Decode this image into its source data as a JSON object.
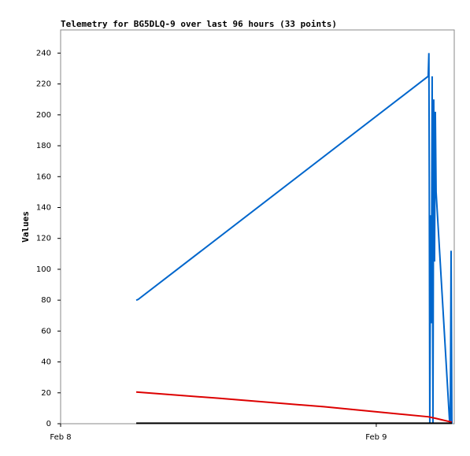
{
  "chart_data": {
    "type": "line",
    "title": "Telemetry for BG5DLQ-9 over last 96 hours (33 points)",
    "y_label": "Values",
    "xlim": [
      0,
      29.93
    ],
    "xticks": [
      {
        "value": 0,
        "label": "Feb 8"
      },
      {
        "value": 24,
        "label": "Feb 9"
      }
    ],
    "ylim": [
      0,
      255
    ],
    "yticks": [
      0,
      20,
      40,
      60,
      80,
      100,
      120,
      140,
      160,
      180,
      200,
      220,
      240
    ],
    "series": [
      {
        "color": "#0066cc",
        "x": [
          5.75,
          5.9,
          27.95,
          28.0,
          28.03,
          28.07,
          28.13,
          28.19,
          28.25,
          28.31,
          28.37,
          28.43,
          28.49,
          28.55,
          29.57,
          29.63,
          29.69,
          29.75
        ],
        "values": [
          80,
          80.5,
          225,
          240,
          160,
          0,
          135,
          65,
          225,
          0,
          210,
          105,
          202,
          150,
          2,
          0,
          112,
          0
        ]
      },
      {
        "color": "#dd0000",
        "x": [
          5.75,
          12,
          20,
          27.95,
          28.5,
          29.75
        ],
        "values": [
          20.5,
          16.5,
          11,
          4.5,
          3.5,
          1
        ]
      },
      {
        "color": "#000000",
        "x": [
          5.75,
          29.75
        ],
        "values": [
          0.3,
          0.3
        ]
      }
    ]
  }
}
